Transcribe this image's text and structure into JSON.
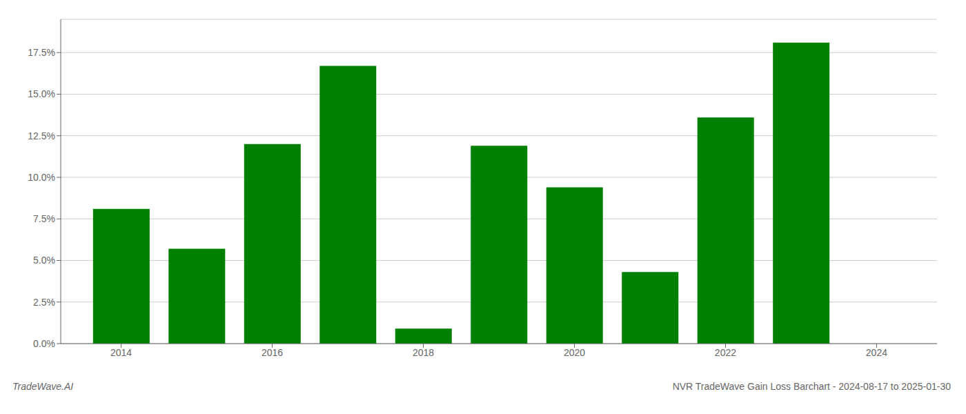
{
  "chart_data": {
    "type": "bar",
    "title": "NVR TradeWave Gain Loss Barchart - 2024-08-17 to 2025-01-30",
    "annotations": [
      "TradeWave.AI"
    ],
    "x": [
      2014,
      2015,
      2016,
      2017,
      2018,
      2019,
      2020,
      2021,
      2022,
      2023
    ],
    "values": [
      0.081,
      0.057,
      0.12,
      0.167,
      0.009,
      0.119,
      0.094,
      0.043,
      0.136,
      0.181
    ],
    "color": "#008000",
    "xlim": [
      2013.2,
      2024.8
    ],
    "xticks": [
      2014,
      2016,
      2018,
      2020,
      2022,
      2024
    ],
    "ylim": [
      0,
      0.195
    ],
    "yticks": [
      {
        "value": 0.0,
        "label": "0.0%"
      },
      {
        "value": 0.025,
        "label": "2.5%"
      },
      {
        "value": 0.05,
        "label": "5.0%"
      },
      {
        "value": 0.075,
        "label": "7.5%"
      },
      {
        "value": 0.1,
        "label": "10.0%"
      },
      {
        "value": 0.125,
        "label": "12.5%"
      },
      {
        "value": 0.15,
        "label": "15.0%"
      },
      {
        "value": 0.175,
        "label": "17.5%"
      }
    ],
    "grid": true
  }
}
